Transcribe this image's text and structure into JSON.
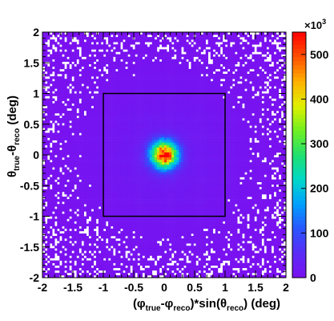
{
  "chart_data": {
    "type": "heatmap",
    "xlabel_parts": [
      "(φ",
      "true",
      "-φ",
      "reco",
      ")*sin(θ",
      "reco",
      ") (deg)"
    ],
    "ylabel_parts": [
      "θ",
      "true",
      "-θ",
      "reco",
      " (deg)"
    ],
    "xlim": [
      -2,
      2
    ],
    "ylim": [
      -2,
      2
    ],
    "xticks": [
      "-2",
      "-1.5",
      "-1",
      "-0.5",
      "0",
      "0.5",
      "1",
      "1.5",
      "2"
    ],
    "yticks": [
      "-2",
      "-1.5",
      "-1",
      "-0.5",
      "0",
      "0.5",
      "1",
      "1.5",
      "2"
    ],
    "colorbar": {
      "range": [
        0,
        550
      ],
      "multiplier_base": "×10",
      "multiplier_exp": "3",
      "ticks": [
        "0",
        "100",
        "200",
        "300",
        "400",
        "500"
      ]
    },
    "peak": {
      "x": 0,
      "y": 0,
      "value": 540
    },
    "peak_sigma_deg": 0.15,
    "tail_sigma_deg": 0.9,
    "box": {
      "x": [
        -1,
        1
      ],
      "y": [
        -1,
        1
      ]
    },
    "colors": {
      "low": "#8a1cf0",
      "scale": [
        "#7a10f0",
        "#5a2cf5",
        "#2a55ff",
        "#00a0ff",
        "#00d8c8",
        "#20e070",
        "#70f020",
        "#e0f000",
        "#ffb000",
        "#ff5000",
        "#ff0000"
      ]
    }
  }
}
